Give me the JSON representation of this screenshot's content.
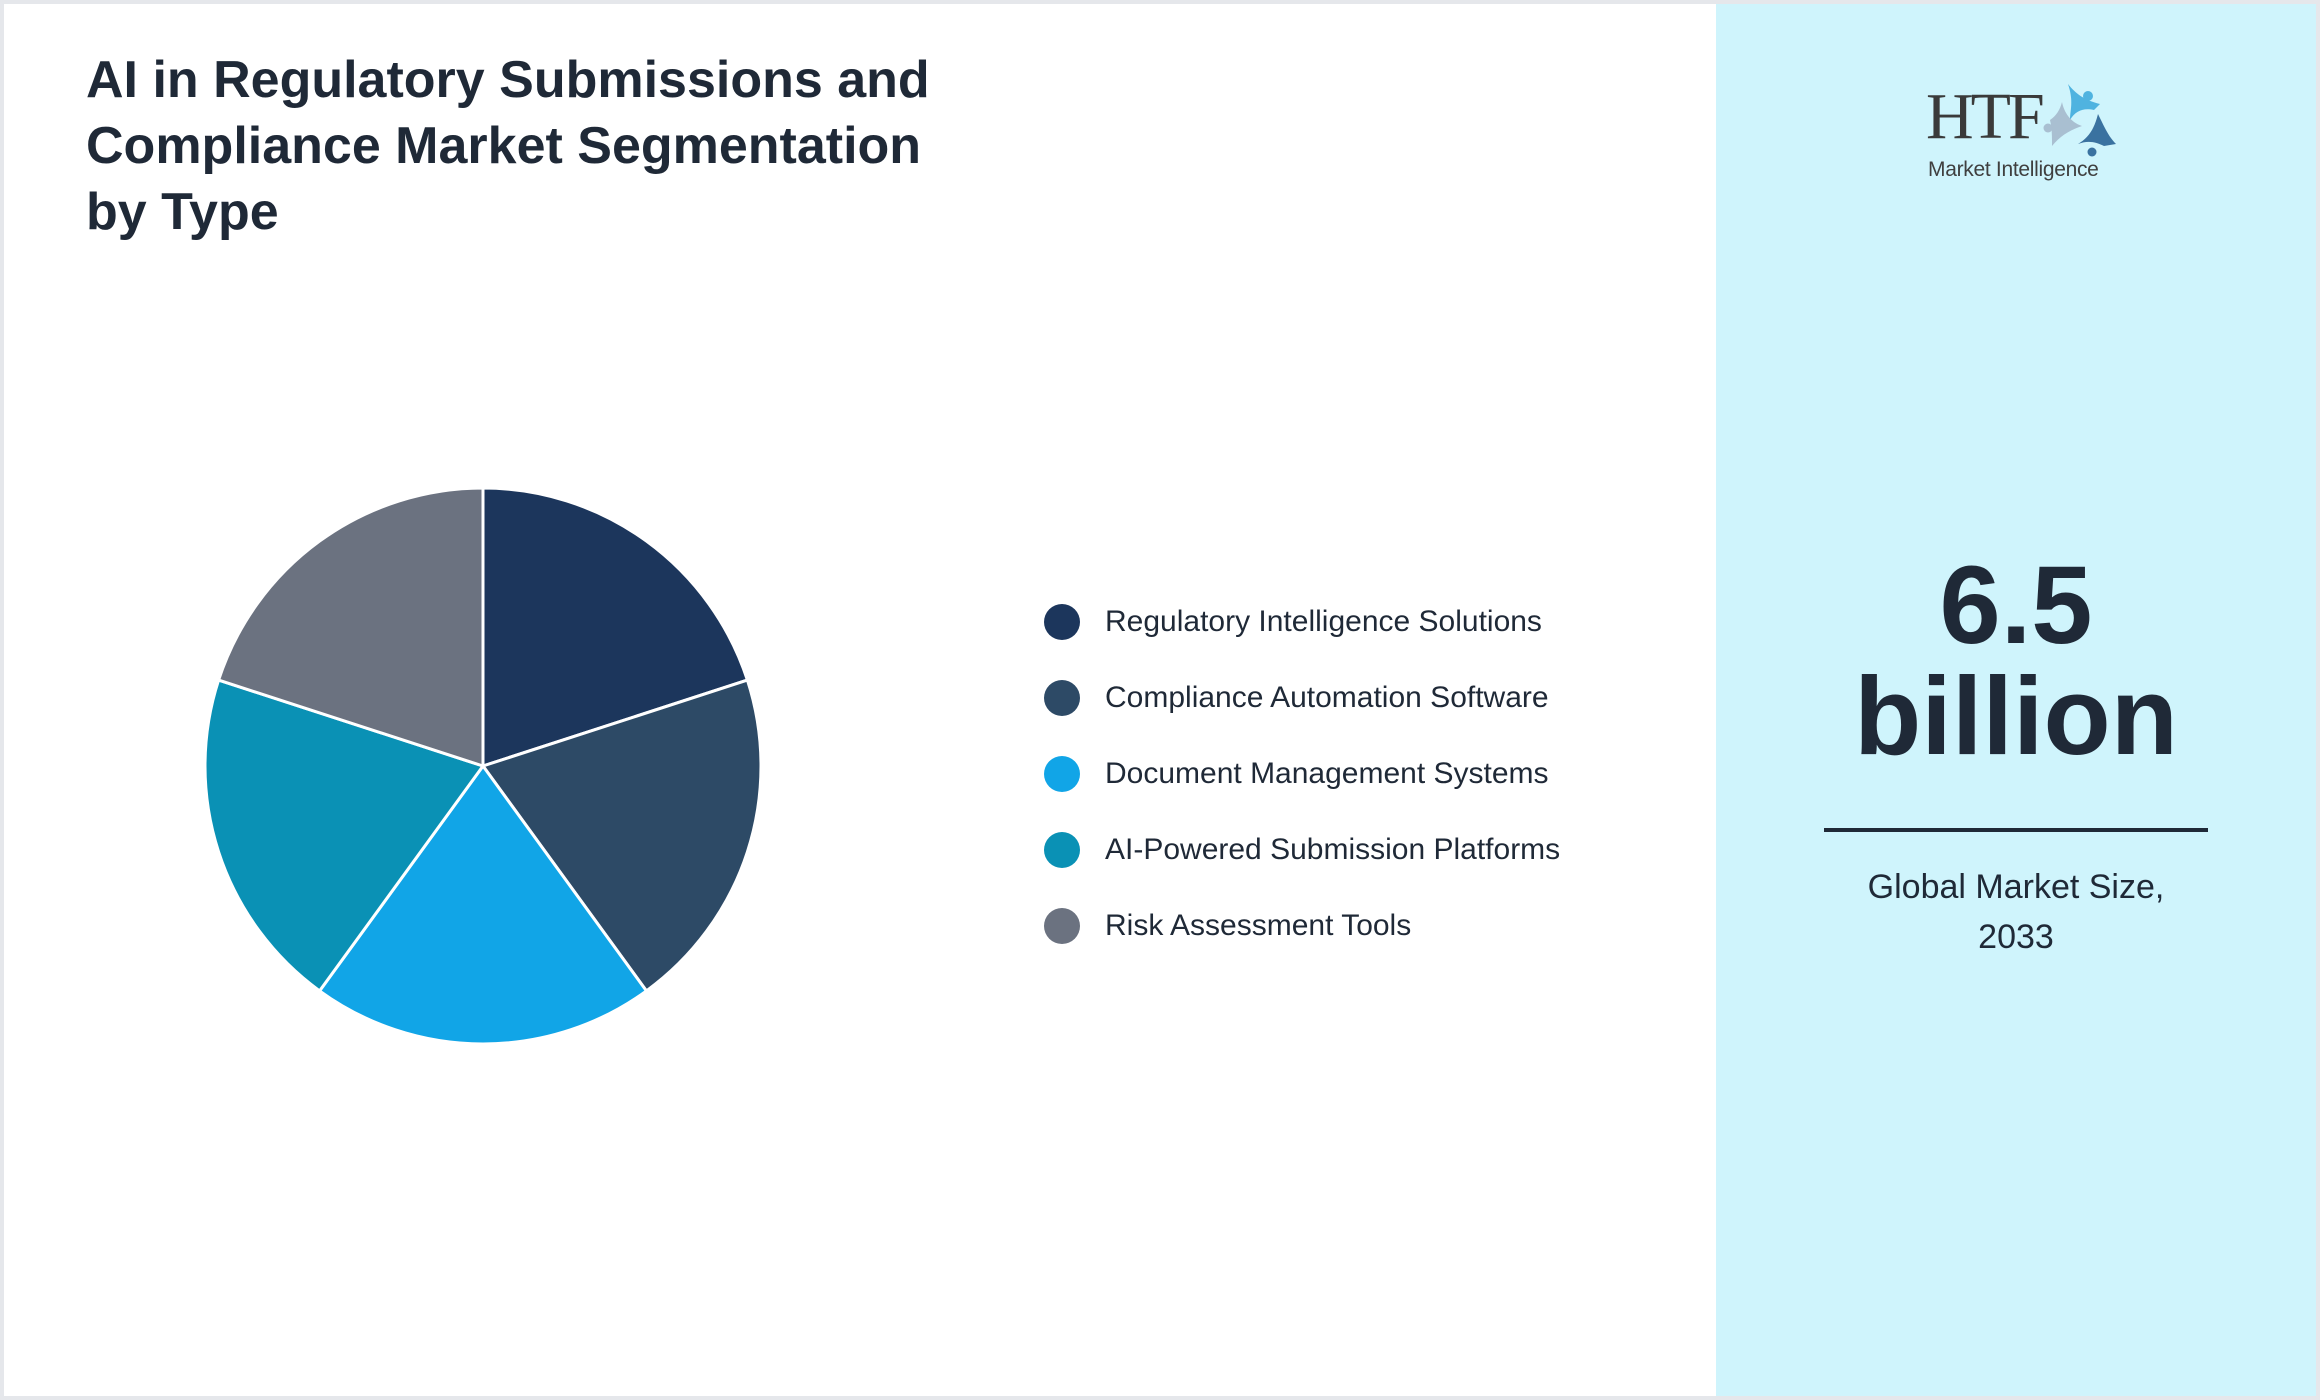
{
  "title": {
    "lines": [
      "AI in Regulatory Submissions and",
      "Compliance Market Segmentation",
      "by Type"
    ],
    "full": "AI in Regulatory Submissions and Compliance Market Segmentation by Type"
  },
  "legend": {
    "items": [
      {
        "label": "Regulatory Intelligence Solutions",
        "color": "#1c365c"
      },
      {
        "label": "Compliance Automation Software",
        "color": "#2d4a66"
      },
      {
        "label": "Document Management Systems",
        "color": "#11a5e7"
      },
      {
        "label": "AI-Powered Submission Platforms",
        "color": "#0a91b5"
      },
      {
        "label": "Risk Assessment Tools",
        "color": "#6b7280"
      }
    ]
  },
  "side_panel": {
    "logo": {
      "brand": "HTF",
      "subtitle": "Market Intelligence"
    },
    "stat": {
      "value": "6.5",
      "unit": "billion"
    },
    "caption": {
      "line1": "Global Market Size,",
      "line2": "2033"
    },
    "background": "#cff4fc"
  },
  "chart_data": {
    "type": "pie",
    "title": "AI in Regulatory Submissions and Compliance Market Segmentation by Type",
    "categories": [
      "Regulatory Intelligence Solutions",
      "Compliance Automation Software",
      "Document Management Systems",
      "AI-Powered Submission Platforms",
      "Risk Assessment Tools"
    ],
    "values": [
      20,
      20,
      20,
      20,
      20
    ],
    "colors": [
      "#1c365c",
      "#2d4a66",
      "#11a5e7",
      "#0a91b5",
      "#6b7280"
    ],
    "start_angle": "top, clockwise",
    "legend_position": "right",
    "annotation": "6.5 billion — Global Market Size, 2033"
  }
}
